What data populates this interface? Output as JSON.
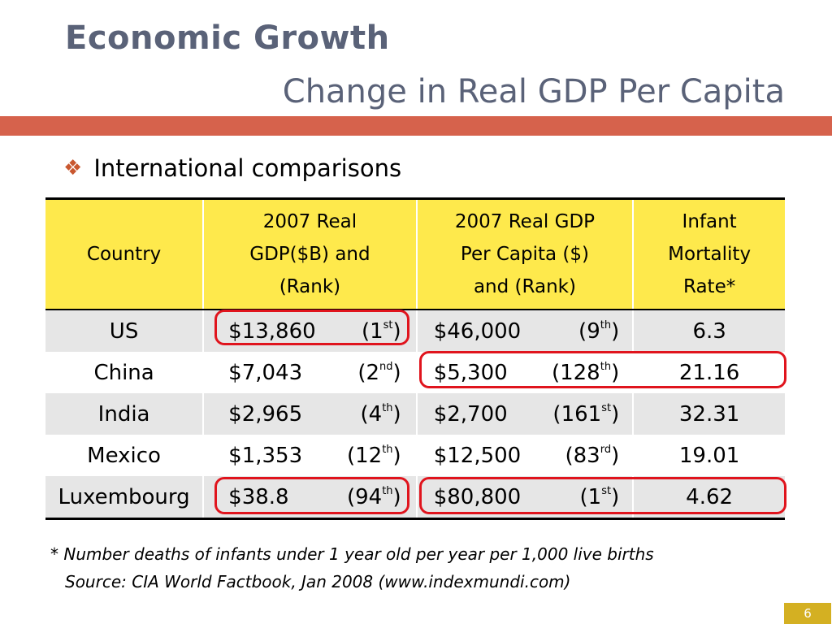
{
  "slide": {
    "title": "Economic Growth",
    "subtitle": "Change in Real GDP Per Capita",
    "bullet": "International comparisons",
    "page_number": "6"
  },
  "table": {
    "headers": {
      "country": "Country",
      "gdp_line1": "2007 Real",
      "gdp_line2": "GDP($B) and",
      "gdp_line3": "(Rank)",
      "pc_line1": "2007 Real GDP",
      "pc_line2": "Per Capita  ($)",
      "pc_line3": "and (Rank)",
      "im_line1": "Infant",
      "im_line2": "Mortality",
      "im_line3": "Rate*"
    },
    "rows": [
      {
        "country": "US",
        "gdp": "$13,860",
        "gdp_rank_open": "(1",
        "gdp_rank_sup": "st",
        "gdp_rank_close": ")",
        "pc": "$46,000",
        "pc_rank_open": "(9",
        "pc_rank_sup": "th",
        "pc_rank_close": ")",
        "imr": "6.3"
      },
      {
        "country": "China",
        "gdp": "$7,043",
        "gdp_rank_open": "(2",
        "gdp_rank_sup": "nd",
        "gdp_rank_close": ")",
        "pc": "$5,300",
        "pc_rank_open": "(128",
        "pc_rank_sup": "th",
        "pc_rank_close": ")",
        "imr": "21.16"
      },
      {
        "country": "India",
        "gdp": "$2,965",
        "gdp_rank_open": "(4",
        "gdp_rank_sup": "th",
        "gdp_rank_close": ")",
        "pc": "$2,700",
        "pc_rank_open": "(161",
        "pc_rank_sup": "st",
        "pc_rank_close": ")",
        "imr": "32.31"
      },
      {
        "country": "Mexico",
        "gdp": "$1,353",
        "gdp_rank_open": "(12",
        "gdp_rank_sup": "th",
        "gdp_rank_close": ")",
        "pc": "$12,500",
        "pc_rank_open": "(83",
        "pc_rank_sup": "rd",
        "pc_rank_close": ")",
        "imr": "19.01"
      },
      {
        "country": "Luxembourg",
        "gdp": "$38.8",
        "gdp_rank_open": "(94",
        "gdp_rank_sup": "th",
        "gdp_rank_close": ")",
        "pc": "$80,800",
        "pc_rank_open": "(1",
        "pc_rank_sup": "st",
        "pc_rank_close": ")",
        "imr": "4.62"
      }
    ]
  },
  "footnote": {
    "line1": "* Number deaths of infants under 1 year old per year per 1,000 live births",
    "line2": "Source: CIA World Factbook, Jan 2008 (www.indexmundi.com)"
  },
  "colors": {
    "title": "#5a6278",
    "accent_bar": "#d6624c",
    "header_fill": "#fee94c",
    "row_band": "#e6e6e6",
    "highlight": "#e0141d",
    "page_box": "#d4b022"
  },
  "icons": {
    "bullet": "four-diamond-bullet-icon"
  }
}
